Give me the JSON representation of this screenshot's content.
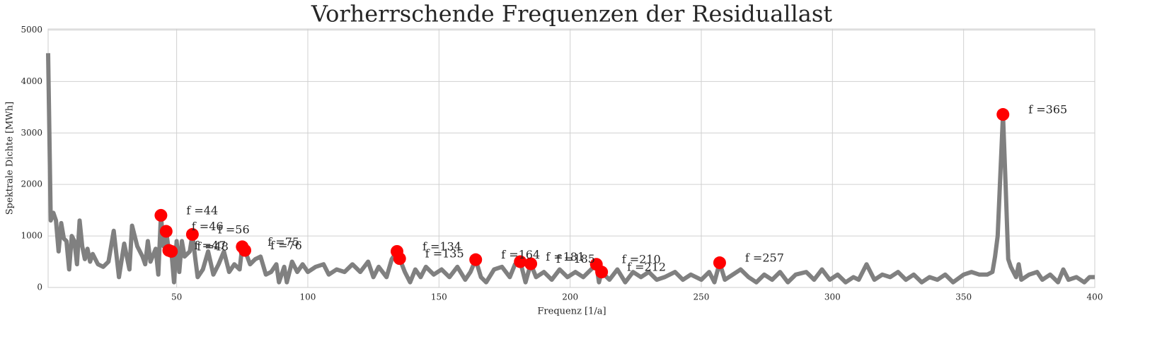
{
  "chart_data": {
    "type": "line",
    "title": "Vorherrschende Frequenzen der Residuallast",
    "x_label": "Frequenz [1/a]",
    "y_label": "Spektrale Dichte [MWh]",
    "color": "#808080",
    "x": [
      1,
      2,
      3,
      4,
      5,
      6,
      7,
      8,
      9,
      10,
      11,
      12,
      13,
      14,
      15,
      16,
      17,
      18,
      20,
      22,
      24,
      26,
      28,
      30,
      32,
      33,
      35,
      37,
      38,
      39,
      40,
      42,
      43,
      44,
      45,
      46,
      47,
      48,
      49,
      50,
      51,
      52,
      53,
      55,
      56,
      57,
      58,
      60,
      62,
      64,
      66,
      68,
      70,
      72,
      74,
      75,
      76,
      78,
      80,
      82,
      84,
      86,
      88,
      89,
      91,
      92,
      94,
      96,
      98,
      100,
      103,
      106,
      108,
      111,
      114,
      117,
      120,
      123,
      125,
      127,
      130,
      132,
      134,
      135,
      137,
      139,
      141,
      143,
      145,
      148,
      151,
      154,
      157,
      160,
      162,
      164,
      166,
      168,
      171,
      174,
      177,
      179,
      181,
      183,
      185,
      187,
      190,
      193,
      196,
      199,
      202,
      205,
      208,
      210,
      211,
      212,
      215,
      218,
      221,
      224,
      227,
      230,
      233,
      236,
      240,
      243,
      246,
      250,
      253,
      255,
      257,
      259,
      262,
      265,
      268,
      271,
      274,
      277,
      280,
      283,
      286,
      290,
      293,
      296,
      299,
      302,
      305,
      308,
      310,
      313,
      316,
      319,
      322,
      325,
      328,
      331,
      334,
      337,
      340,
      343,
      346,
      350,
      353,
      356,
      359,
      361,
      362,
      363,
      364,
      365,
      366,
      367,
      368,
      370,
      371,
      372,
      375,
      378,
      380,
      383,
      386,
      388,
      390,
      393,
      396,
      398,
      400
    ],
    "values": [
      4550,
      1300,
      1450,
      1300,
      700,
      1250,
      950,
      900,
      350,
      1000,
      900,
      450,
      1300,
      800,
      550,
      750,
      500,
      650,
      450,
      400,
      500,
      1100,
      200,
      850,
      350,
      1200,
      800,
      600,
      450,
      900,
      500,
      750,
      250,
      1400,
      800,
      1090,
      720,
      700,
      100,
      900,
      300,
      900,
      600,
      700,
      1030,
      600,
      200,
      350,
      700,
      250,
      450,
      700,
      300,
      450,
      350,
      790,
      720,
      450,
      550,
      600,
      250,
      300,
      450,
      100,
      400,
      100,
      500,
      300,
      450,
      300,
      400,
      450,
      250,
      350,
      300,
      450,
      300,
      500,
      200,
      400,
      200,
      550,
      700,
      560,
      300,
      100,
      350,
      200,
      400,
      250,
      350,
      200,
      400,
      150,
      300,
      540,
      200,
      100,
      350,
      400,
      200,
      450,
      500,
      100,
      460,
      200,
      300,
      150,
      350,
      200,
      300,
      200,
      350,
      450,
      100,
      300,
      150,
      350,
      100,
      300,
      200,
      300,
      150,
      200,
      300,
      150,
      250,
      150,
      300,
      100,
      480,
      150,
      250,
      350,
      200,
      100,
      250,
      150,
      300,
      100,
      250,
      300,
      150,
      350,
      150,
      250,
      100,
      200,
      150,
      450,
      150,
      250,
      200,
      300,
      150,
      250,
      100,
      200,
      150,
      250,
      100,
      250,
      300,
      250,
      250,
      300,
      600,
      1000,
      2200,
      3360,
      2000,
      550,
      400,
      200,
      450,
      150,
      250,
      300,
      150,
      250,
      100,
      350,
      150,
      200,
      100,
      200,
      200
    ],
    "peaks": {
      "color": "#ff0000",
      "x": [
        44,
        46,
        47,
        48,
        56,
        75,
        76,
        134,
        135,
        164,
        181,
        185,
        210,
        212,
        257,
        365
      ],
      "values": [
        1400,
        1090,
        720,
        700,
        1030,
        790,
        720,
        700,
        560,
        540,
        500,
        460,
        450,
        300,
        480,
        3360
      ],
      "labels": [
        "f =44",
        "f =46",
        "f =47",
        "f =48",
        "f =56",
        "f =75",
        "f =76",
        "f =134",
        "f =135",
        "f =164",
        "f =181",
        "f =185",
        "f =210",
        "f =212",
        "f =257",
        "f =365"
      ]
    },
    "xlim": [
      1,
      400
    ],
    "ylim": [
      0,
      5020
    ],
    "xticks": [
      50,
      100,
      150,
      200,
      250,
      300,
      350,
      400
    ],
    "yticks": [
      0,
      1000,
      2000,
      3000,
      4000,
      5000
    ],
    "grid": true
  }
}
